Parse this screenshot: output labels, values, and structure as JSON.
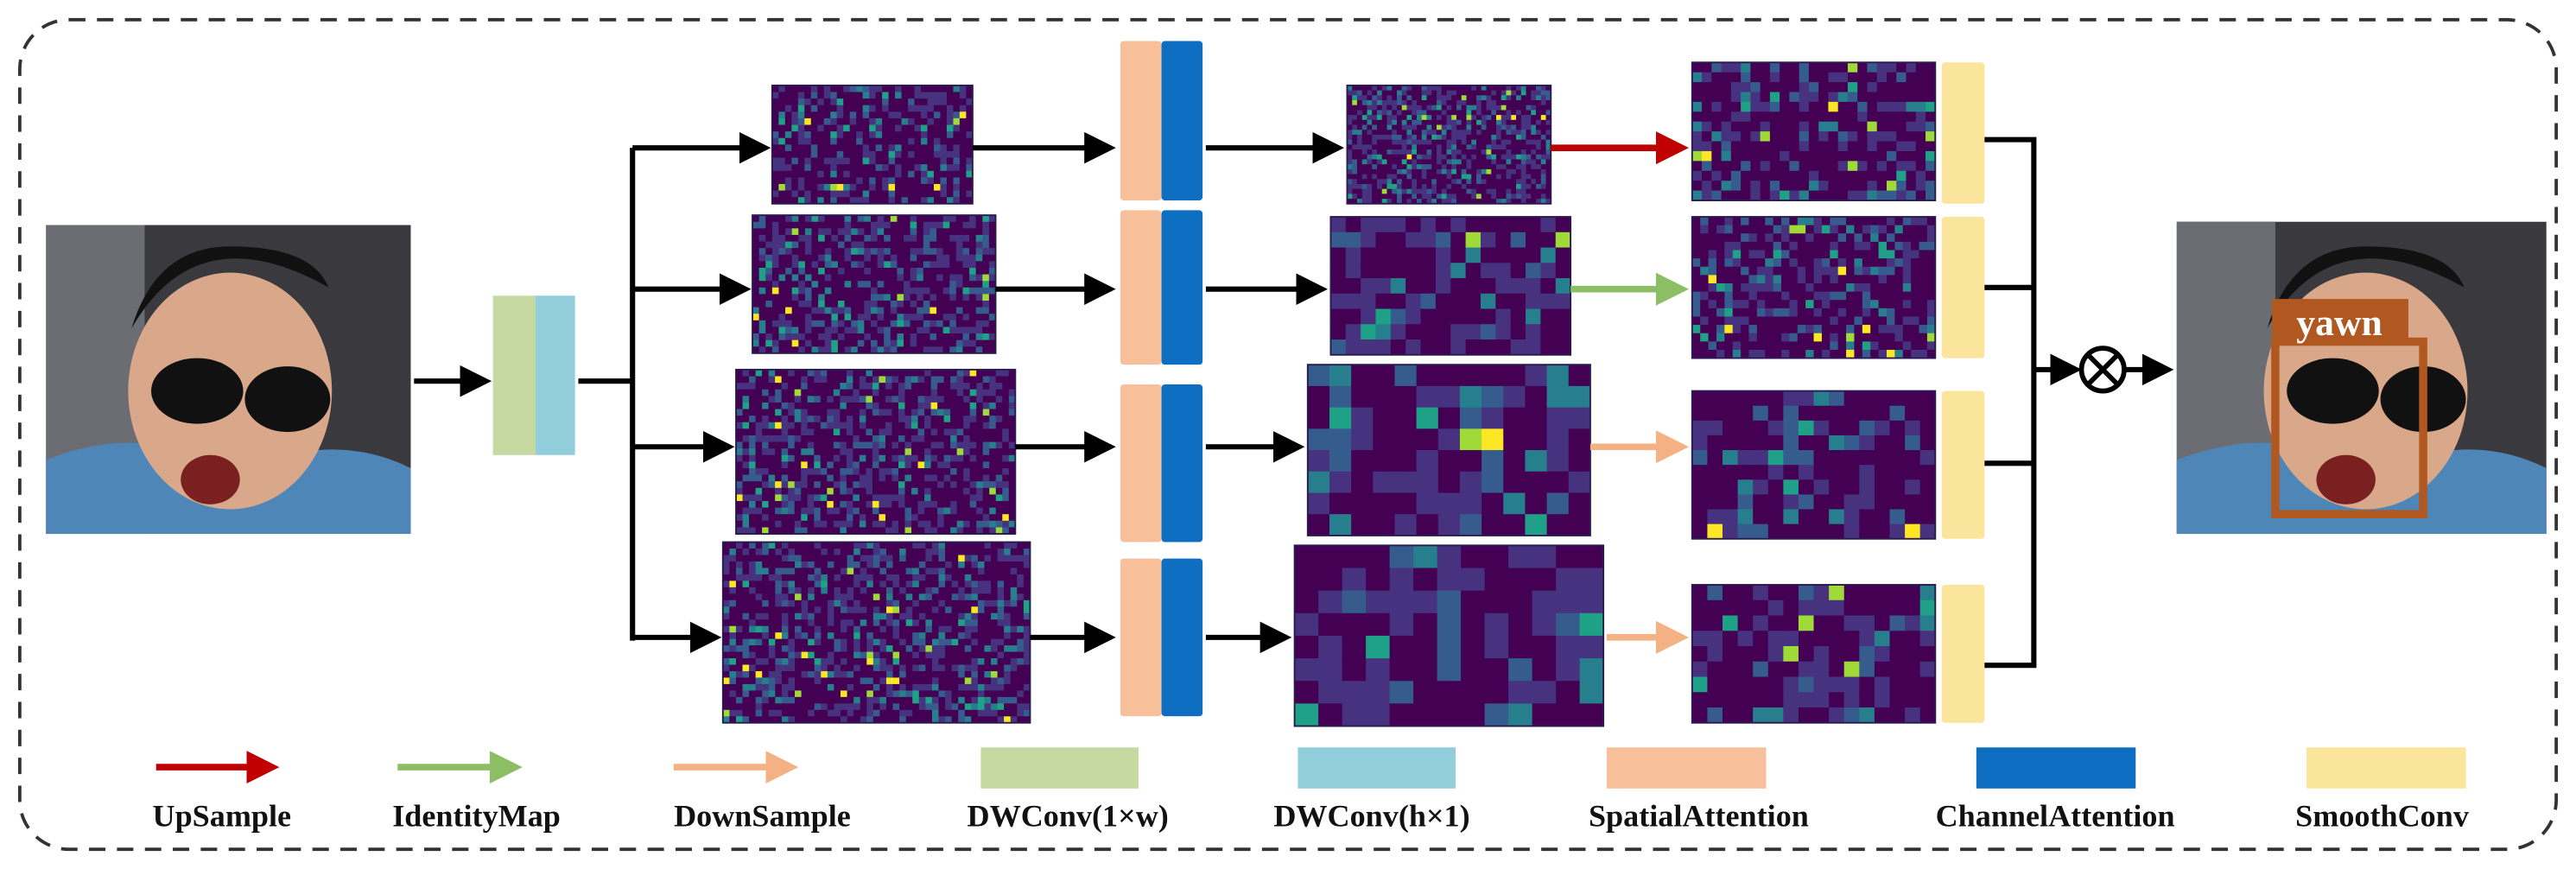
{
  "output": {
    "label": "yawn"
  },
  "legend": [
    {
      "label": "UpSample"
    },
    {
      "label": "IdentityMap"
    },
    {
      "label": "DownSample"
    },
    {
      "label": "DWConv(1×w)"
    },
    {
      "label": "DWConv(h×1)"
    },
    {
      "label": "SpatialAttention"
    },
    {
      "label": "ChannelAttention"
    },
    {
      "label": "SmoothConv"
    }
  ]
}
